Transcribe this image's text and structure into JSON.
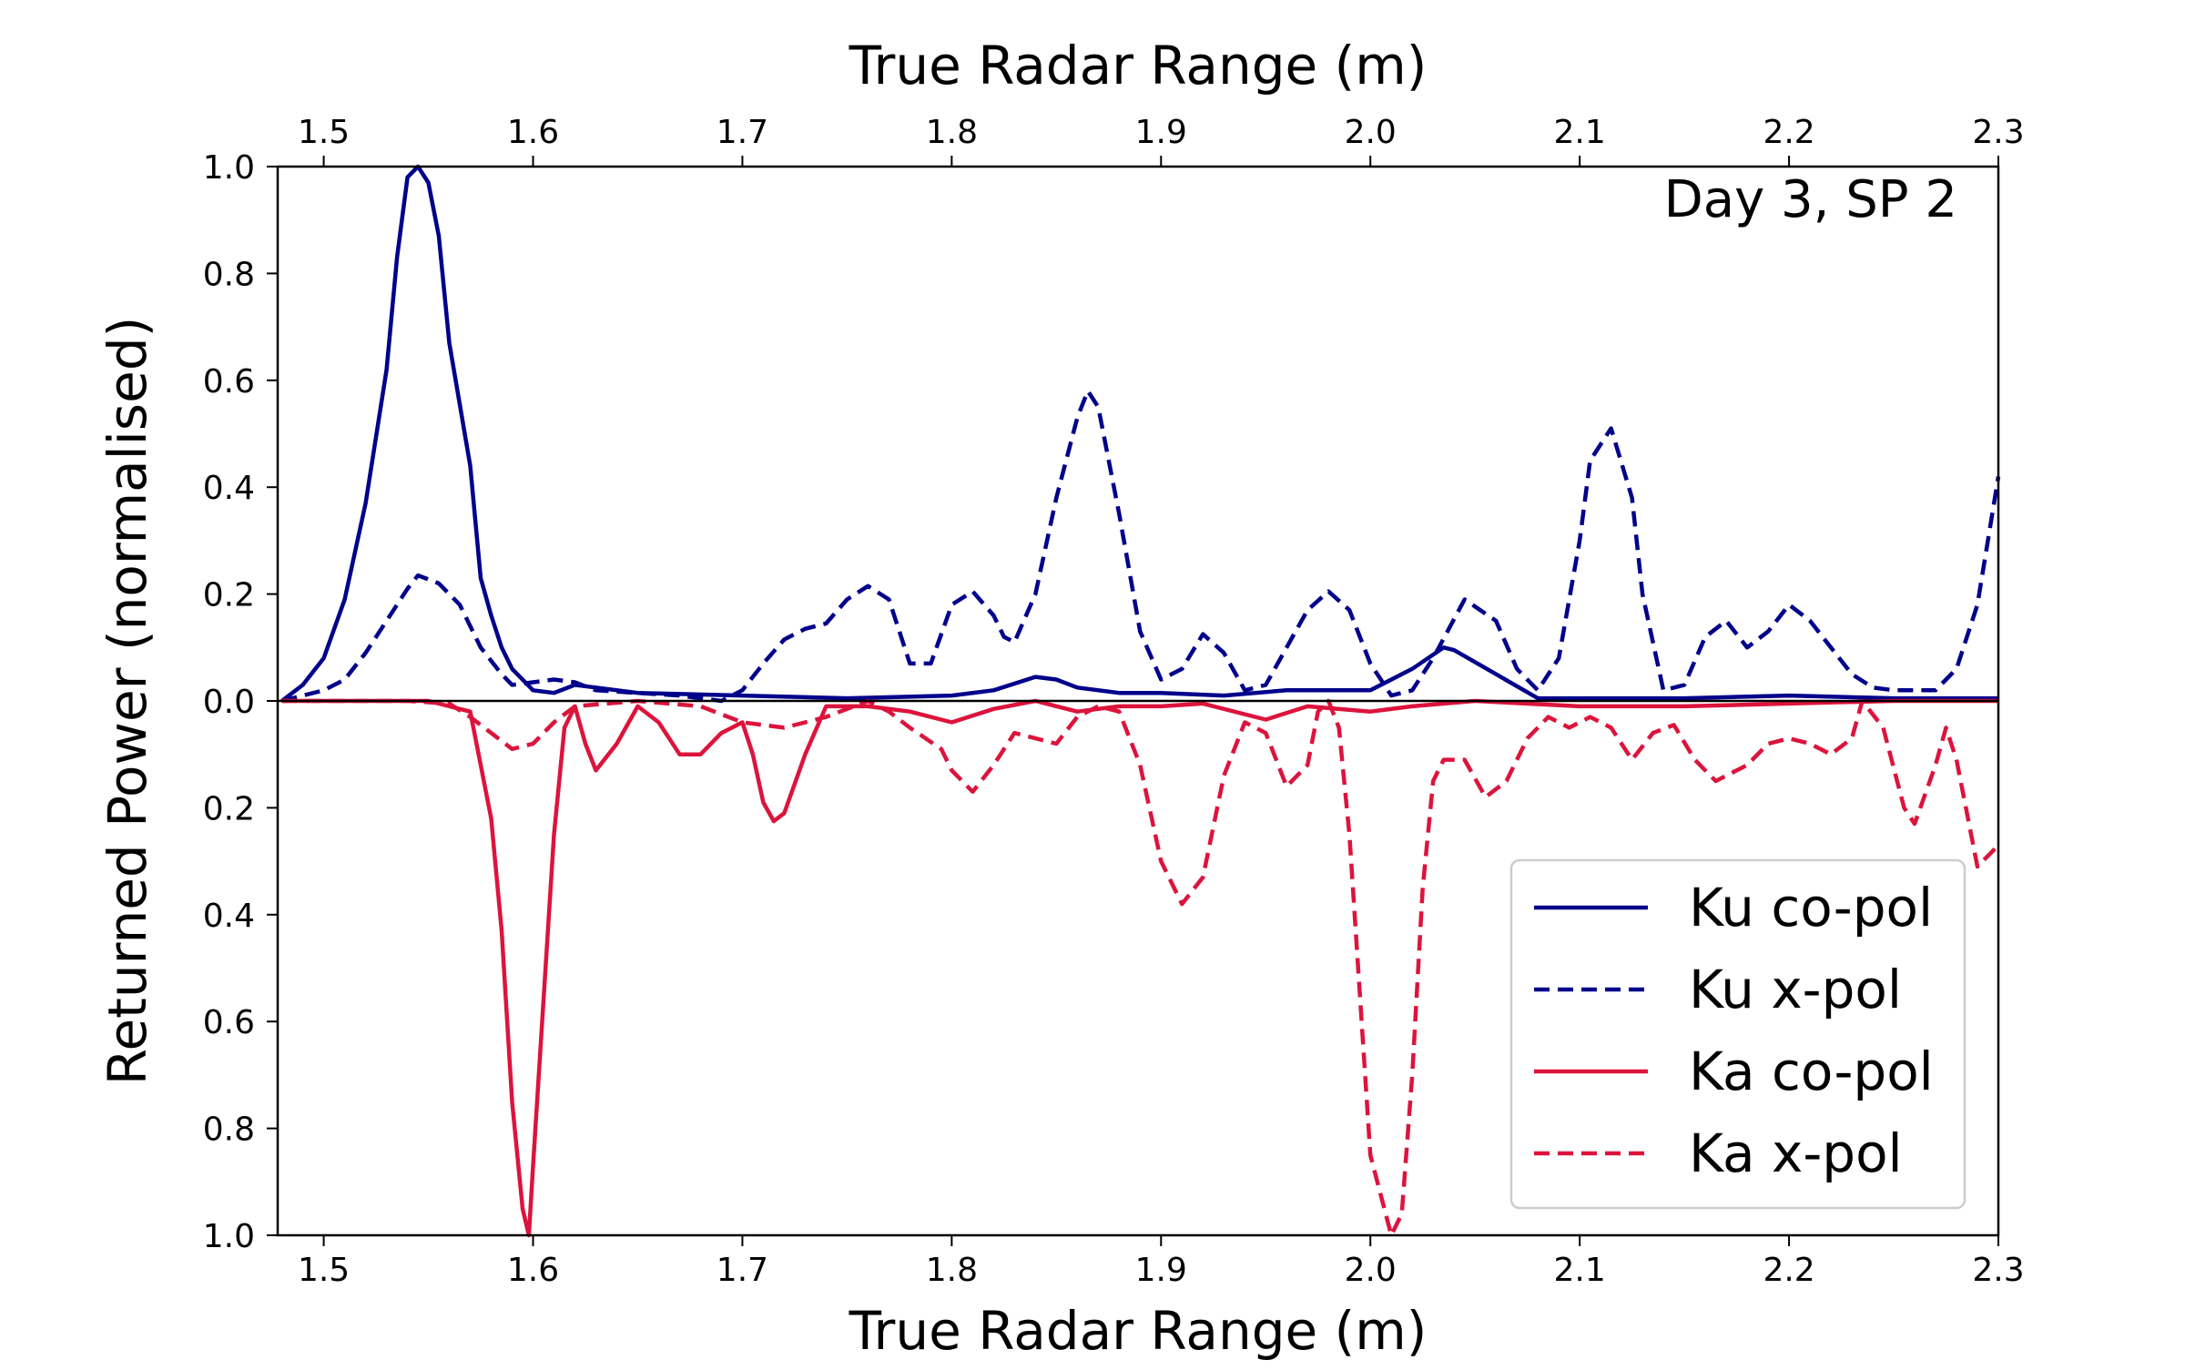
{
  "chart_data": {
    "type": "line",
    "title": "",
    "annotation": "Day 3, SP 2",
    "xlabel_bottom": "True Radar Range (m)",
    "xlabel_top": "True Radar Range (m)",
    "ylabel": "Returned Power (normalised)",
    "xlim": [
      1.478,
      2.3
    ],
    "ylim": [
      -1.0,
      1.0
    ],
    "x_ticks": [
      1.5,
      1.6,
      1.7,
      1.8,
      1.9,
      2.0,
      2.1,
      2.2,
      2.3
    ],
    "x_tick_labels": [
      "1.5",
      "1.6",
      "1.7",
      "1.8",
      "1.9",
      "2.0",
      "2.1",
      "2.2",
      "2.3"
    ],
    "y_ticks": [
      1.0,
      0.8,
      0.6,
      0.4,
      0.2,
      0.0,
      -0.2,
      -0.4,
      -0.6,
      -0.8,
      -1.0
    ],
    "y_tick_labels": [
      "1.0",
      "0.8",
      "0.6",
      "0.4",
      "0.2",
      "0.0",
      "0.2",
      "0.4",
      "0.6",
      "0.8",
      "1.0"
    ],
    "legend_position": "lower-right",
    "grid": false,
    "series": [
      {
        "name": "Ku co-pol",
        "color": "#00008b",
        "dash": "solid",
        "points": [
          [
            1.48,
            0.0
          ],
          [
            1.49,
            0.03
          ],
          [
            1.5,
            0.08
          ],
          [
            1.51,
            0.19
          ],
          [
            1.52,
            0.37
          ],
          [
            1.53,
            0.62
          ],
          [
            1.535,
            0.83
          ],
          [
            1.54,
            0.98
          ],
          [
            1.545,
            1.0
          ],
          [
            1.55,
            0.97
          ],
          [
            1.555,
            0.87
          ],
          [
            1.56,
            0.67
          ],
          [
            1.57,
            0.44
          ],
          [
            1.575,
            0.23
          ],
          [
            1.58,
            0.16
          ],
          [
            1.585,
            0.1
          ],
          [
            1.59,
            0.06
          ],
          [
            1.6,
            0.02
          ],
          [
            1.61,
            0.015
          ],
          [
            1.62,
            0.03
          ],
          [
            1.63,
            0.025
          ],
          [
            1.65,
            0.015
          ],
          [
            1.7,
            0.01
          ],
          [
            1.75,
            0.005
          ],
          [
            1.8,
            0.01
          ],
          [
            1.82,
            0.02
          ],
          [
            1.84,
            0.045
          ],
          [
            1.85,
            0.04
          ],
          [
            1.86,
            0.025
          ],
          [
            1.88,
            0.015
          ],
          [
            1.9,
            0.015
          ],
          [
            1.93,
            0.01
          ],
          [
            1.96,
            0.02
          ],
          [
            1.98,
            0.02
          ],
          [
            2.0,
            0.02
          ],
          [
            2.02,
            0.06
          ],
          [
            2.035,
            0.1
          ],
          [
            2.04,
            0.095
          ],
          [
            2.06,
            0.05
          ],
          [
            2.08,
            0.005
          ],
          [
            2.1,
            0.005
          ],
          [
            2.15,
            0.005
          ],
          [
            2.2,
            0.01
          ],
          [
            2.25,
            0.005
          ],
          [
            2.3,
            0.005
          ]
        ]
      },
      {
        "name": "Ku x-pol",
        "color": "#00008b",
        "dash": "dashed",
        "points": [
          [
            1.48,
            0.0
          ],
          [
            1.5,
            0.02
          ],
          [
            1.51,
            0.04
          ],
          [
            1.52,
            0.09
          ],
          [
            1.53,
            0.15
          ],
          [
            1.54,
            0.21
          ],
          [
            1.545,
            0.235
          ],
          [
            1.555,
            0.22
          ],
          [
            1.565,
            0.18
          ],
          [
            1.575,
            0.1
          ],
          [
            1.585,
            0.05
          ],
          [
            1.59,
            0.03
          ],
          [
            1.6,
            0.035
          ],
          [
            1.61,
            0.04
          ],
          [
            1.62,
            0.035
          ],
          [
            1.63,
            0.02
          ],
          [
            1.65,
            0.015
          ],
          [
            1.67,
            0.01
          ],
          [
            1.69,
            0.0
          ],
          [
            1.7,
            0.02
          ],
          [
            1.71,
            0.07
          ],
          [
            1.72,
            0.115
          ],
          [
            1.73,
            0.135
          ],
          [
            1.74,
            0.145
          ],
          [
            1.75,
            0.19
          ],
          [
            1.76,
            0.215
          ],
          [
            1.77,
            0.19
          ],
          [
            1.78,
            0.07
          ],
          [
            1.79,
            0.07
          ],
          [
            1.8,
            0.18
          ],
          [
            1.81,
            0.205
          ],
          [
            1.82,
            0.16
          ],
          [
            1.825,
            0.12
          ],
          [
            1.83,
            0.11
          ],
          [
            1.84,
            0.2
          ],
          [
            1.85,
            0.38
          ],
          [
            1.86,
            0.53
          ],
          [
            1.865,
            0.58
          ],
          [
            1.87,
            0.55
          ],
          [
            1.88,
            0.35
          ],
          [
            1.89,
            0.13
          ],
          [
            1.9,
            0.04
          ],
          [
            1.91,
            0.06
          ],
          [
            1.92,
            0.125
          ],
          [
            1.93,
            0.09
          ],
          [
            1.94,
            0.02
          ],
          [
            1.95,
            0.03
          ],
          [
            1.96,
            0.1
          ],
          [
            1.97,
            0.17
          ],
          [
            1.98,
            0.205
          ],
          [
            1.99,
            0.17
          ],
          [
            2.0,
            0.07
          ],
          [
            2.01,
            0.01
          ],
          [
            2.02,
            0.02
          ],
          [
            2.03,
            0.08
          ],
          [
            2.045,
            0.19
          ],
          [
            2.06,
            0.15
          ],
          [
            2.07,
            0.06
          ],
          [
            2.08,
            0.02
          ],
          [
            2.09,
            0.08
          ],
          [
            2.1,
            0.3
          ],
          [
            2.105,
            0.45
          ],
          [
            2.115,
            0.51
          ],
          [
            2.125,
            0.38
          ],
          [
            2.13,
            0.2
          ],
          [
            2.14,
            0.02
          ],
          [
            2.15,
            0.03
          ],
          [
            2.16,
            0.12
          ],
          [
            2.17,
            0.15
          ],
          [
            2.18,
            0.1
          ],
          [
            2.19,
            0.13
          ],
          [
            2.2,
            0.18
          ],
          [
            2.21,
            0.15
          ],
          [
            2.22,
            0.1
          ],
          [
            2.23,
            0.05
          ],
          [
            2.24,
            0.025
          ],
          [
            2.25,
            0.02
          ],
          [
            2.27,
            0.02
          ],
          [
            2.28,
            0.06
          ],
          [
            2.29,
            0.18
          ],
          [
            2.3,
            0.42
          ]
        ]
      },
      {
        "name": "Ka co-pol",
        "color": "#dc143c",
        "dash": "solid",
        "points": [
          [
            1.48,
            0.0
          ],
          [
            1.55,
            0.0
          ],
          [
            1.57,
            -0.02
          ],
          [
            1.58,
            -0.22
          ],
          [
            1.585,
            -0.43
          ],
          [
            1.59,
            -0.75
          ],
          [
            1.595,
            -0.95
          ],
          [
            1.598,
            -1.0
          ],
          [
            1.6,
            -0.87
          ],
          [
            1.605,
            -0.56
          ],
          [
            1.61,
            -0.25
          ],
          [
            1.615,
            -0.05
          ],
          [
            1.62,
            -0.01
          ],
          [
            1.625,
            -0.08
          ],
          [
            1.63,
            -0.13
          ],
          [
            1.64,
            -0.08
          ],
          [
            1.65,
            -0.01
          ],
          [
            1.66,
            -0.04
          ],
          [
            1.67,
            -0.1
          ],
          [
            1.68,
            -0.1
          ],
          [
            1.69,
            -0.06
          ],
          [
            1.7,
            -0.04
          ],
          [
            1.705,
            -0.1
          ],
          [
            1.71,
            -0.19
          ],
          [
            1.715,
            -0.225
          ],
          [
            1.72,
            -0.21
          ],
          [
            1.73,
            -0.1
          ],
          [
            1.74,
            -0.01
          ],
          [
            1.76,
            -0.01
          ],
          [
            1.78,
            -0.02
          ],
          [
            1.8,
            -0.04
          ],
          [
            1.82,
            -0.015
          ],
          [
            1.84,
            0.0
          ],
          [
            1.86,
            -0.02
          ],
          [
            1.88,
            -0.01
          ],
          [
            1.9,
            -0.01
          ],
          [
            1.92,
            -0.005
          ],
          [
            1.95,
            -0.035
          ],
          [
            1.97,
            -0.01
          ],
          [
            2.0,
            -0.02
          ],
          [
            2.02,
            -0.01
          ],
          [
            2.05,
            0.0
          ],
          [
            2.1,
            -0.01
          ],
          [
            2.15,
            -0.01
          ],
          [
            2.2,
            -0.005
          ],
          [
            2.25,
            0.0
          ],
          [
            2.3,
            0.0
          ]
        ]
      },
      {
        "name": "Ka x-pol",
        "color": "#dc143c",
        "dash": "dashed",
        "points": [
          [
            1.48,
            0.0
          ],
          [
            1.54,
            0.0
          ],
          [
            1.56,
            -0.005
          ],
          [
            1.57,
            -0.03
          ],
          [
            1.58,
            -0.06
          ],
          [
            1.59,
            -0.09
          ],
          [
            1.6,
            -0.08
          ],
          [
            1.61,
            -0.04
          ],
          [
            1.62,
            -0.01
          ],
          [
            1.65,
            0.0
          ],
          [
            1.68,
            -0.01
          ],
          [
            1.7,
            -0.04
          ],
          [
            1.72,
            -0.05
          ],
          [
            1.74,
            -0.03
          ],
          [
            1.76,
            0.0
          ],
          [
            1.77,
            -0.02
          ],
          [
            1.78,
            -0.05
          ],
          [
            1.795,
            -0.09
          ],
          [
            1.8,
            -0.13
          ],
          [
            1.81,
            -0.17
          ],
          [
            1.82,
            -0.12
          ],
          [
            1.83,
            -0.06
          ],
          [
            1.84,
            -0.07
          ],
          [
            1.85,
            -0.08
          ],
          [
            1.86,
            -0.03
          ],
          [
            1.87,
            -0.01
          ],
          [
            1.88,
            -0.02
          ],
          [
            1.89,
            -0.12
          ],
          [
            1.9,
            -0.3
          ],
          [
            1.91,
            -0.38
          ],
          [
            1.92,
            -0.33
          ],
          [
            1.93,
            -0.14
          ],
          [
            1.94,
            -0.04
          ],
          [
            1.95,
            -0.06
          ],
          [
            1.96,
            -0.16
          ],
          [
            1.97,
            -0.12
          ],
          [
            1.975,
            -0.02
          ],
          [
            1.98,
            0.0
          ],
          [
            1.985,
            -0.05
          ],
          [
            1.99,
            -0.25
          ],
          [
            1.995,
            -0.55
          ],
          [
            2.0,
            -0.85
          ],
          [
            2.01,
            -1.0
          ],
          [
            2.015,
            -0.96
          ],
          [
            2.02,
            -0.7
          ],
          [
            2.025,
            -0.35
          ],
          [
            2.03,
            -0.15
          ],
          [
            2.035,
            -0.11
          ],
          [
            2.045,
            -0.11
          ],
          [
            2.055,
            -0.18
          ],
          [
            2.065,
            -0.15
          ],
          [
            2.075,
            -0.07
          ],
          [
            2.085,
            -0.03
          ],
          [
            2.095,
            -0.05
          ],
          [
            2.105,
            -0.03
          ],
          [
            2.115,
            -0.05
          ],
          [
            2.125,
            -0.11
          ],
          [
            2.135,
            -0.06
          ],
          [
            2.145,
            -0.045
          ],
          [
            2.155,
            -0.11
          ],
          [
            2.165,
            -0.15
          ],
          [
            2.18,
            -0.12
          ],
          [
            2.19,
            -0.08
          ],
          [
            2.2,
            -0.07
          ],
          [
            2.21,
            -0.08
          ],
          [
            2.22,
            -0.1
          ],
          [
            2.23,
            -0.07
          ],
          [
            2.235,
            0.0
          ],
          [
            2.245,
            -0.05
          ],
          [
            2.255,
            -0.2
          ],
          [
            2.26,
            -0.23
          ],
          [
            2.27,
            -0.12
          ],
          [
            2.275,
            -0.05
          ],
          [
            2.28,
            -0.11
          ],
          [
            2.29,
            -0.31
          ],
          [
            2.3,
            -0.27
          ]
        ]
      }
    ]
  }
}
